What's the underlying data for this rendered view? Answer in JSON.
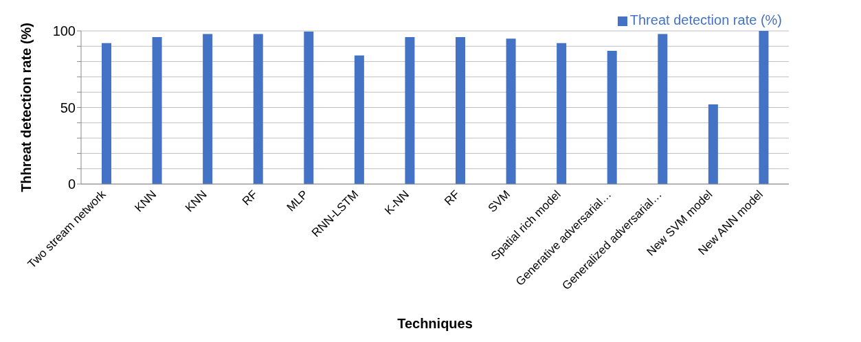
{
  "chart_data": {
    "type": "bar",
    "xlabel": "Techniques",
    "ylabel": "Thhreat detection rate (%)",
    "categories": [
      "Two stream network",
      "KNN",
      "KNN",
      "RF",
      "MLP",
      "RNN-LSTM",
      "K-NN",
      "RF",
      "SVM",
      "Spatial rich model",
      "Generative adversarial…",
      "Generalized adversarial…",
      "New SVM model",
      "New ANN model"
    ],
    "series": [
      {
        "name": "Threat detection rate (%)",
        "color": "#4472c4",
        "values": [
          92,
          96,
          98,
          98,
          99.5,
          84,
          96,
          96,
          95,
          92,
          87,
          98,
          52,
          100
        ]
      }
    ],
    "ylim": [
      0,
      100
    ],
    "yticks": [
      0,
      {
        "value": 10,
        "label": null
      },
      {
        "value": 20,
        "label": null
      },
      {
        "value": 30,
        "label": null
      },
      {
        "value": 40,
        "label": null
      },
      50,
      {
        "value": 60,
        "label": null
      },
      {
        "value": 70,
        "label": null
      },
      {
        "value": 80,
        "label": null
      },
      {
        "value": 90,
        "label": null
      },
      100
    ],
    "grid": "y",
    "legend": "top right"
  }
}
